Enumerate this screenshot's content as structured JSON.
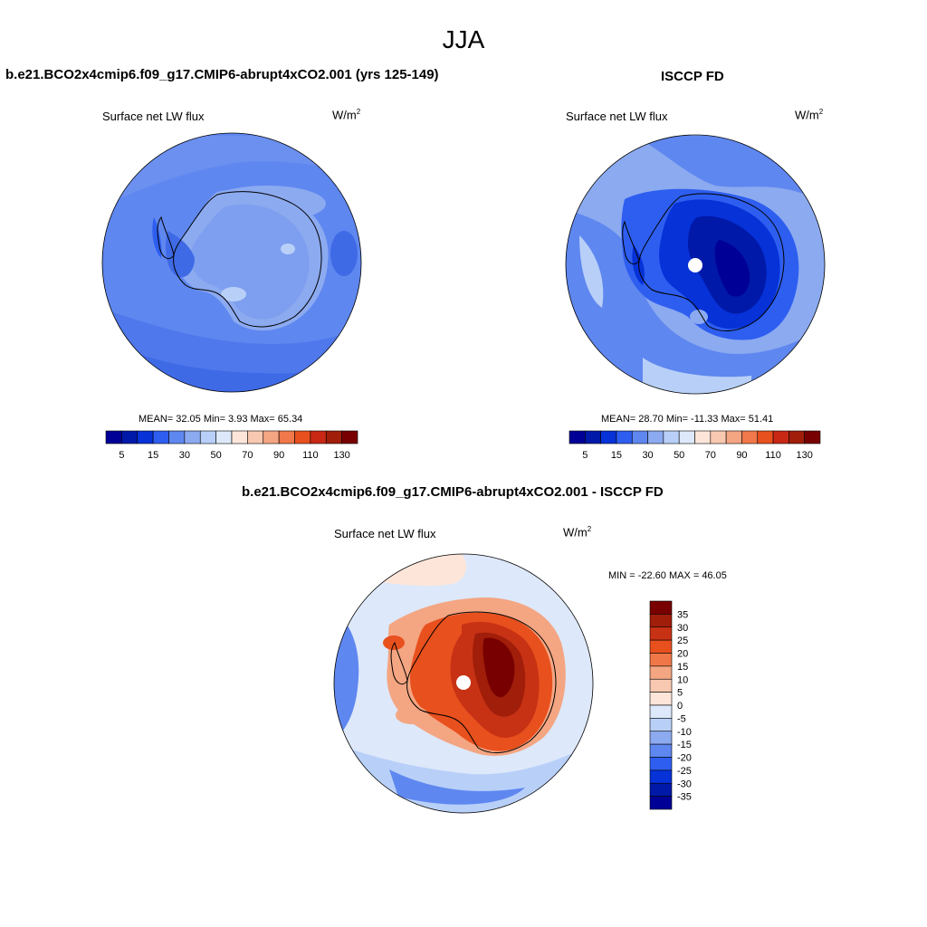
{
  "title": "JJA",
  "panels": [
    {
      "title": "b.e21.BCO2x4cmip6.f09_g17.CMIP6-abrupt4xCO2.001 (yrs 125-149)",
      "variable": "Surface net LW flux",
      "units_base": "W/m",
      "units_exp": "2",
      "stats": "MEAN=  32.05  Min=   3.93  Max=  65.34",
      "colorbar": {
        "colors": [
          "#000096",
          "#0019a8",
          "#0632d8",
          "#2e5ef0",
          "#5f87f0",
          "#8caaf0",
          "#b8d0f8",
          "#dde8fa",
          "#fde5d9",
          "#f8c8b0",
          "#f4a582",
          "#f0784a",
          "#e8501e",
          "#c82814",
          "#a01e0a",
          "#780000"
        ],
        "labels": [
          "5",
          "15",
          "30",
          "50",
          "70",
          "90",
          "110",
          "130"
        ]
      }
    },
    {
      "title": "ISCCP FD",
      "variable": "Surface net LW flux",
      "units_base": "W/m",
      "units_exp": "2",
      "stats": "MEAN=  28.70  Min= -11.33  Max=  51.41",
      "colorbar": {
        "colors": [
          "#000096",
          "#0019a8",
          "#0632d8",
          "#2e5ef0",
          "#5f87f0",
          "#8caaf0",
          "#b8d0f8",
          "#dde8fa",
          "#fde5d9",
          "#f8c8b0",
          "#f4a582",
          "#f0784a",
          "#e8501e",
          "#c82814",
          "#a01e0a",
          "#780000"
        ],
        "labels": [
          "5",
          "15",
          "30",
          "50",
          "70",
          "90",
          "110",
          "130"
        ]
      }
    },
    {
      "title": "b.e21.BCO2x4cmip6.f09_g17.CMIP6-abrupt4xCO2.001 - ISCCP FD",
      "variable": "Surface net LW flux",
      "units_base": "W/m",
      "units_exp": "2",
      "stats": "MIN = -22.60 MAX =  46.05",
      "colorbar": {
        "colors": [
          "#780000",
          "#a01e0a",
          "#c83214",
          "#e8501e",
          "#f07848",
          "#f4a582",
          "#f8c8b0",
          "#fde5d9",
          "#dde8fa",
          "#b8d0f8",
          "#8caaf0",
          "#5f87f0",
          "#2e5ef0",
          "#0632d8",
          "#0019a8",
          "#000096"
        ],
        "labels": [
          "35",
          "30",
          "25",
          "20",
          "15",
          "10",
          "5",
          "0",
          "-5",
          "-10",
          "-15",
          "-20",
          "-25",
          "-30",
          "-35"
        ]
      }
    }
  ]
}
